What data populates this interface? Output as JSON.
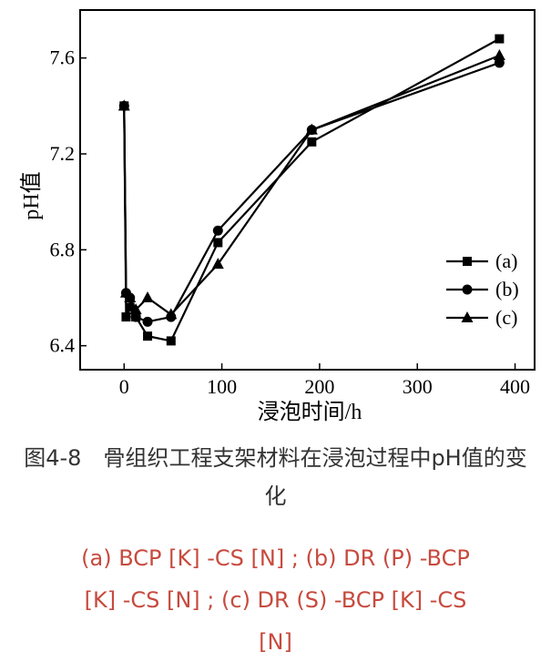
{
  "chart_data": {
    "type": "line",
    "xlabel": "浸泡时间/h",
    "ylabel": "pH值",
    "xlim": [
      -45,
      420
    ],
    "ylim": [
      6.3,
      7.8
    ],
    "x_ticks": [
      0,
      100,
      200,
      300,
      400
    ],
    "y_ticks": [
      6.4,
      6.8,
      7.2,
      7.6
    ],
    "x_tick_labels": [
      "0",
      "100",
      "200",
      "300",
      "400"
    ],
    "y_tick_labels": [
      "6.4",
      "6.8",
      "7.2",
      "7.6"
    ],
    "legend_position": "right",
    "series": [
      {
        "name": "(a)",
        "marker": "square",
        "x": [
          0,
          2,
          6,
          12,
          24,
          48,
          96,
          192,
          384
        ],
        "y": [
          7.4,
          6.52,
          6.56,
          6.52,
          6.44,
          6.42,
          6.83,
          7.25,
          7.68
        ]
      },
      {
        "name": "(b)",
        "marker": "circle",
        "x": [
          0,
          2,
          6,
          12,
          24,
          48,
          96,
          192,
          384
        ],
        "y": [
          7.4,
          6.62,
          6.6,
          6.52,
          6.5,
          6.52,
          6.88,
          7.3,
          7.58
        ]
      },
      {
        "name": "(c)",
        "marker": "triangle",
        "x": [
          0,
          2,
          6,
          12,
          24,
          48,
          96,
          192,
          384
        ],
        "y": [
          7.4,
          6.62,
          6.6,
          6.55,
          6.6,
          6.53,
          6.74,
          7.3,
          7.61
        ]
      }
    ]
  },
  "caption": {
    "line1": "图4-8　骨组织工程支架材料在浸泡过程中pH值的变",
    "line2": "化"
  },
  "subcaption": {
    "line1": "(a) BCP [K] -CS [N] ;  (b) DR (P) -BCP",
    "line2": "[K] -CS [N] ;  (c) DR (S) -BCP [K] -CS",
    "line3": "[N]"
  }
}
